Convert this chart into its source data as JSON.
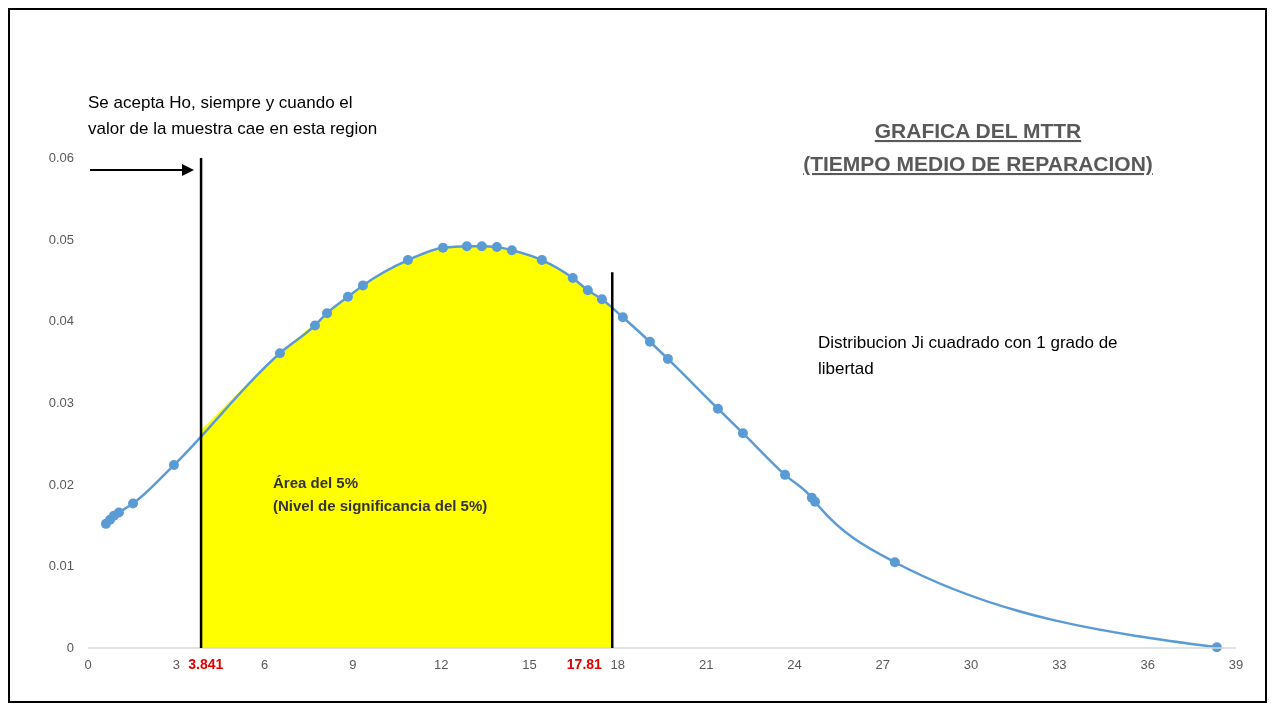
{
  "chart_data": {
    "type": "line",
    "title": "GRAFICA DEL MTTR\n(TIEMPO MEDIO DE REPARACION)",
    "xlim": [
      0,
      39
    ],
    "xticks": [
      0,
      3,
      6,
      9,
      12,
      15,
      18,
      21,
      24,
      27,
      30,
      33,
      36,
      39
    ],
    "ylim": [
      0,
      0.06
    ],
    "yticks": [
      0,
      0.01,
      0.02,
      0.03,
      0.04,
      0.05,
      0.06
    ],
    "grid": false,
    "marker": "circle",
    "line_style": "solid",
    "series": [
      {
        "type": "area",
        "color": "#ffff00",
        "marker": "none",
        "x": [
          3.841,
          6.52,
          8.12,
          9.34,
          10.87,
          12.06,
          13.38,
          14.4,
          15.42,
          16.47,
          17.46,
          17.81
        ],
        "values": [
          0.0267,
          0.0361,
          0.041,
          0.0444,
          0.0475,
          0.049,
          0.0492,
          0.0487,
          0.0475,
          0.0453,
          0.0427,
          0.0417
        ]
      },
      {
        "color": "#5b9bd5",
        "x": [
          0.61,
          0.75,
          0.88,
          1.05,
          1.53,
          2.92,
          6.52,
          7.71,
          8.12,
          8.83,
          9.34,
          10.87,
          12.06,
          12.87,
          13.38,
          13.89,
          14.4,
          15.42,
          16.47,
          16.98,
          17.46,
          18.17,
          19.09,
          19.7,
          21.4,
          22.25,
          23.68,
          24.59,
          24.7,
          27.41,
          38.35
        ],
        "values": [
          0.0152,
          0.0157,
          0.0162,
          0.0166,
          0.0177,
          0.0224,
          0.0361,
          0.0395,
          0.041,
          0.043,
          0.0444,
          0.0475,
          0.049,
          0.0492,
          0.0492,
          0.0491,
          0.0487,
          0.0475,
          0.0453,
          0.0438,
          0.0427,
          0.0405,
          0.0375,
          0.0354,
          0.0293,
          0.0263,
          0.0212,
          0.0184,
          0.0179,
          0.0105,
          0.0001
        ]
      }
    ],
    "ref_lines": [
      {
        "axis": "x",
        "value": 3.841,
        "label": "3.841",
        "color": "#000000"
      },
      {
        "axis": "x",
        "value": 17.81,
        "label": "17.81",
        "color": "#000000"
      }
    ],
    "annotations": [
      "Se acepta Ho, siempre y cuando el\nvalor de la muestra cae en esta region",
      "Distribucion Ji cuadrado con 1 grado de\nlibertad",
      "Área del 5%\n(Nivel de significancia del 5%)"
    ]
  }
}
